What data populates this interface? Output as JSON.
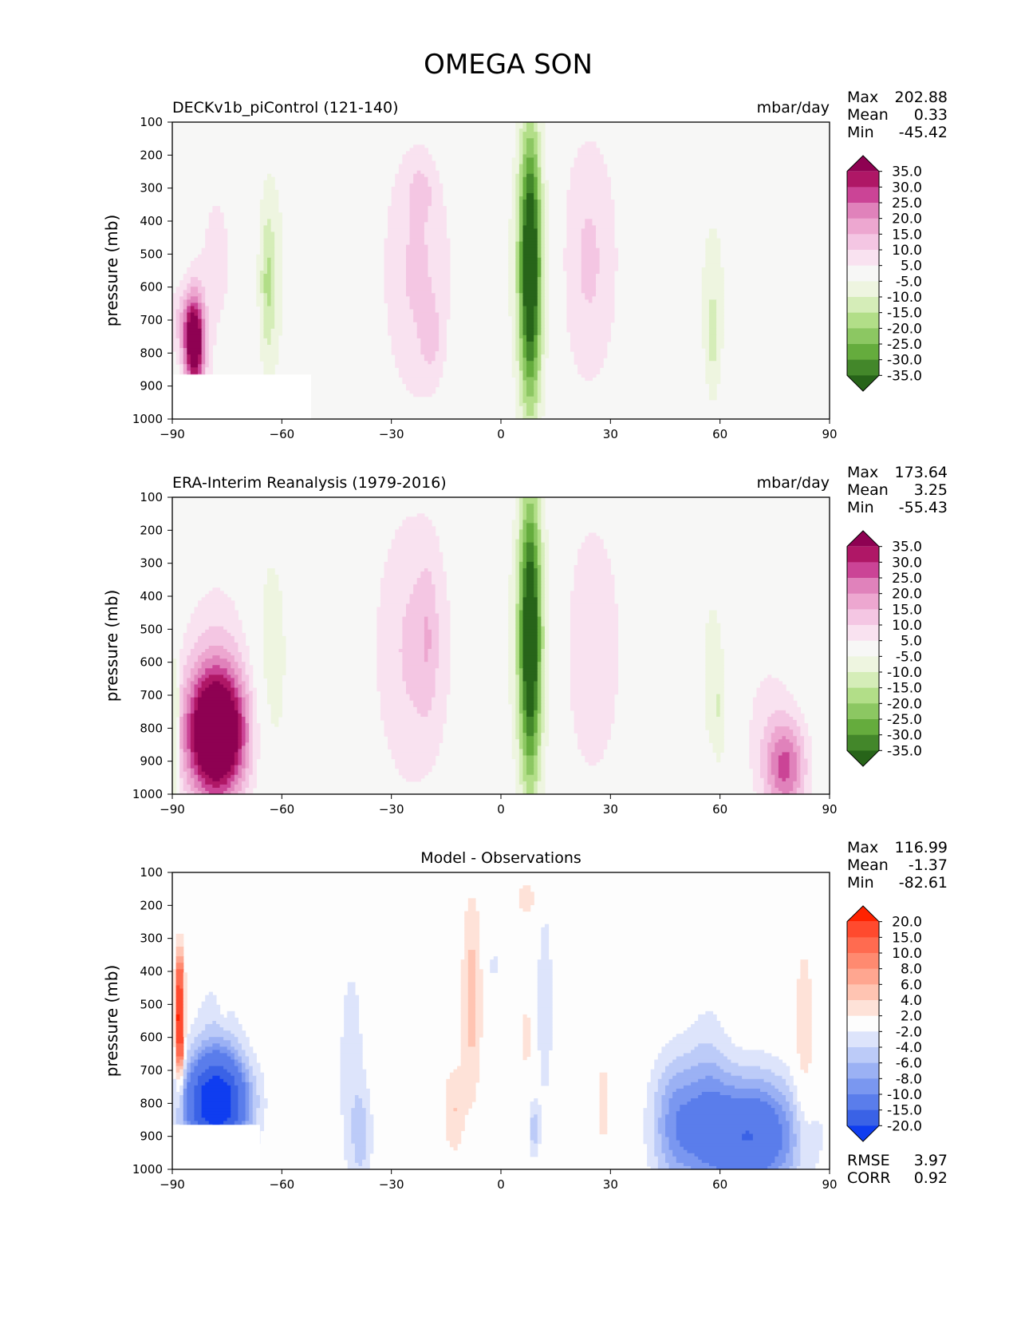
{
  "figure": {
    "title": "OMEGA SON"
  },
  "chart_data": [
    {
      "type": "heatmap",
      "title": "DECKv1b_piControl (121-140)",
      "units": "mbar/day",
      "xlabel": "",
      "ylabel": "pressure (mb)",
      "xlim": [
        -90,
        90
      ],
      "ylim": [
        1000,
        100
      ],
      "xticks": [
        "−90",
        "−60",
        "−30",
        "0",
        "30",
        "60",
        "90"
      ],
      "yticks": [
        "100",
        "200",
        "300",
        "400",
        "500",
        "600",
        "700",
        "800",
        "900",
        "1000"
      ],
      "stats": {
        "max_label": "Max",
        "max": "202.88",
        "mean_label": "Mean",
        "mean": "0.33",
        "min_label": "Min",
        "min": "-45.42"
      },
      "colorbar": {
        "labels": [
          "35.0",
          "30.0",
          "25.0",
          "20.0",
          "15.0",
          "10.0",
          "5.0",
          "-5.0",
          "-10.0",
          "-15.0",
          "-20.0",
          "-25.0",
          "-30.0",
          "-35.0"
        ],
        "colors": [
          "#8e0152",
          "#af1766",
          "#cb4496",
          "#e082bb",
          "#eda7d0",
          "#f4c6e3",
          "#f9e2f0",
          "#f7f7f6",
          "#eef5e0",
          "#d5edb8",
          "#b2de88",
          "#8cc762",
          "#65ac3d",
          "#43872a",
          "#276419"
        ]
      },
      "blobs": [
        {
          "lat": 8,
          "p": 540,
          "sx": 2.0,
          "sy": 300,
          "v": -38
        },
        {
          "lat": 8,
          "p": 540,
          "sx": 4.5,
          "sy": 310,
          "v": -10
        },
        {
          "lat": -23,
          "p": 550,
          "sx": 7,
          "sy": 300,
          "v": 11
        },
        {
          "lat": -22,
          "p": 310,
          "sx": 2,
          "sy": 50,
          "v": 7
        },
        {
          "lat": -19,
          "p": 760,
          "sx": 2,
          "sy": 80,
          "v": 6
        },
        {
          "lat": 24,
          "p": 520,
          "sx": 6,
          "sy": 290,
          "v": 11
        },
        {
          "lat": -63,
          "p": 560,
          "sx": 3,
          "sy": 260,
          "v": -9
        },
        {
          "lat": -64,
          "p": 600,
          "sx": 1.3,
          "sy": 150,
          "v": -8
        },
        {
          "lat": 58,
          "p": 650,
          "sx": 3.5,
          "sy": 270,
          "v": -7
        },
        {
          "lat": 58,
          "p": 750,
          "sx": 1.0,
          "sy": 110,
          "v": -6
        },
        {
          "lat": -78,
          "p": 520,
          "sx": 5,
          "sy": 280,
          "v": 6
        },
        {
          "lat": 79,
          "p": 720,
          "sx": 1,
          "sy": 120,
          "v": 5
        },
        {
          "lat": -84,
          "p": 770,
          "sx": 2,
          "sy": 100,
          "v": 45
        },
        {
          "lat": -88,
          "p": 700,
          "sx": 3,
          "sy": 80,
          "v": 8
        }
      ],
      "mask": [
        [
          -90,
          865
        ],
        [
          -52,
          865
        ],
        [
          -52,
          1000
        ],
        [
          -90,
          1000
        ]
      ]
    },
    {
      "type": "heatmap",
      "title": "ERA-Interim Reanalysis (1979-2016)",
      "units": "mbar/day",
      "xlabel": "",
      "ylabel": "pressure (mb)",
      "xlim": [
        -90,
        90
      ],
      "ylim": [
        1000,
        100
      ],
      "xticks": [
        "−90",
        "−60",
        "−30",
        "0",
        "30",
        "60",
        "90"
      ],
      "yticks": [
        "100",
        "200",
        "300",
        "400",
        "500",
        "600",
        "700",
        "800",
        "900",
        "1000"
      ],
      "stats": {
        "max_label": "Max",
        "max": "173.64",
        "mean_label": "Mean",
        "mean": "3.25",
        "min_label": "Min",
        "min": "-55.43"
      },
      "colorbar": {
        "labels": [
          "35.0",
          "30.0",
          "25.0",
          "20.0",
          "15.0",
          "10.0",
          "5.0",
          "-5.0",
          "-10.0",
          "-15.0",
          "-20.0",
          "-25.0",
          "-30.0",
          "-35.0"
        ],
        "colors": [
          "#8e0152",
          "#af1766",
          "#cb4496",
          "#e082bb",
          "#eda7d0",
          "#f4c6e3",
          "#f9e2f0",
          "#f7f7f6",
          "#eef5e0",
          "#d5edb8",
          "#b2de88",
          "#8cc762",
          "#65ac3d",
          "#43872a",
          "#276419"
        ]
      },
      "blobs": [
        {
          "lat": 8,
          "p": 530,
          "sx": 2.0,
          "sy": 310,
          "v": -38
        },
        {
          "lat": 8,
          "p": 530,
          "sx": 4.8,
          "sy": 330,
          "v": -10
        },
        {
          "lat": -24,
          "p": 560,
          "sx": 8,
          "sy": 320,
          "v": 11
        },
        {
          "lat": -20,
          "p": 520,
          "sx": 2,
          "sy": 160,
          "v": 6
        },
        {
          "lat": 25,
          "p": 560,
          "sx": 6,
          "sy": 300,
          "v": 10
        },
        {
          "lat": -63,
          "p": 600,
          "sx": 3.5,
          "sy": 280,
          "v": -9
        },
        {
          "lat": 58,
          "p": 650,
          "sx": 3,
          "sy": 260,
          "v": -7
        },
        {
          "lat": 60,
          "p": 750,
          "sx": 0.8,
          "sy": 100,
          "v": -6
        },
        {
          "lat": -78,
          "p": 820,
          "sx": 6,
          "sy": 140,
          "v": 55
        },
        {
          "lat": -78,
          "p": 560,
          "sx": 7,
          "sy": 200,
          "v": 7
        },
        {
          "lat": 78,
          "p": 920,
          "sx": 4,
          "sy": 100,
          "v": 24
        },
        {
          "lat": 73,
          "p": 780,
          "sx": 6,
          "sy": 200,
          "v": 6
        },
        {
          "lat": -89,
          "p": 800,
          "sx": 0.6,
          "sy": 180,
          "v": -25
        }
      ],
      "mask": []
    },
    {
      "type": "heatmap",
      "title": "Model - Observations",
      "units": "",
      "xlabel": "",
      "ylabel": "pressure (mb)",
      "xlim": [
        -90,
        90
      ],
      "ylim": [
        1000,
        100
      ],
      "xticks": [
        "−90",
        "−60",
        "−30",
        "0",
        "30",
        "60",
        "90"
      ],
      "yticks": [
        "100",
        "200",
        "300",
        "400",
        "500",
        "600",
        "700",
        "800",
        "900",
        "1000"
      ],
      "stats": {
        "max_label": "Max",
        "max": "116.99",
        "mean_label": "Mean",
        "mean": "-1.37",
        "min_label": "Min",
        "min": "-82.61"
      },
      "extra_stats": {
        "rmse_label": "RMSE",
        "rmse": "3.97",
        "corr_label": "CORR",
        "corr": "0.92"
      },
      "colorbar": {
        "labels": [
          "20.0",
          "15.0",
          "10.0",
          "8.0",
          "6.0",
          "4.0",
          "2.0",
          "-2.0",
          "-4.0",
          "-6.0",
          "-8.0",
          "-10.0",
          "-15.0",
          "-20.0"
        ],
        "colors": [
          "#ff2200",
          "#ff4a2e",
          "#ff6b50",
          "#ff8a70",
          "#ffa690",
          "#ffc4b2",
          "#fee2d8",
          "#fdfdfd",
          "#dde4fb",
          "#bccbf8",
          "#9bb1f4",
          "#7a97f0",
          "#5a7deb",
          "#3a62e6",
          "#0f3df0"
        ]
      },
      "blobs": [
        {
          "lat": -8,
          "p": 480,
          "sx": 2,
          "sy": 230,
          "v": 5
        },
        {
          "lat": -13,
          "p": 820,
          "sx": 2,
          "sy": 100,
          "v": 4
        },
        {
          "lat": 7,
          "p": 180,
          "sx": 2,
          "sy": 40,
          "v": 3.5
        },
        {
          "lat": 7,
          "p": 600,
          "sx": 1,
          "sy": 100,
          "v": 3
        },
        {
          "lat": 28,
          "p": 800,
          "sx": 1,
          "sy": 90,
          "v": 4
        },
        {
          "lat": 83,
          "p": 620,
          "sx": 2,
          "sy": 220,
          "v": 4
        },
        {
          "lat": -41,
          "p": 700,
          "sx": 3,
          "sy": 300,
          "v": -3
        },
        {
          "lat": -38,
          "p": 900,
          "sx": 2,
          "sy": 100,
          "v": -4
        },
        {
          "lat": 12,
          "p": 500,
          "sx": 2,
          "sy": 280,
          "v": -3
        },
        {
          "lat": 9,
          "p": 880,
          "sx": 1,
          "sy": 60,
          "v": -5
        },
        {
          "lat": -2,
          "p": 380,
          "sx": 1.5,
          "sy": 40,
          "v": -2.5
        },
        {
          "lat": 68,
          "p": 900,
          "sx": 10,
          "sy": 130,
          "v": -15
        },
        {
          "lat": 48,
          "p": 860,
          "sx": 5,
          "sy": 150,
          "v": -8
        },
        {
          "lat": 57,
          "p": 780,
          "sx": 4,
          "sy": 200,
          "v": -4
        },
        {
          "lat": -78,
          "p": 800,
          "sx": 6,
          "sy": 100,
          "v": -25
        },
        {
          "lat": -78,
          "p": 600,
          "sx": 5,
          "sy": 150,
          "v": -3
        },
        {
          "lat": -76,
          "p": 460,
          "sx": 1,
          "sy": 60,
          "v": 3
        },
        {
          "lat": -88,
          "p": 540,
          "sx": 0.8,
          "sy": 120,
          "v": 25
        }
      ],
      "mask": [
        [
          -90,
          865
        ],
        [
          -66,
          865
        ],
        [
          -66,
          1000
        ],
        [
          -90,
          1000
        ]
      ]
    }
  ]
}
